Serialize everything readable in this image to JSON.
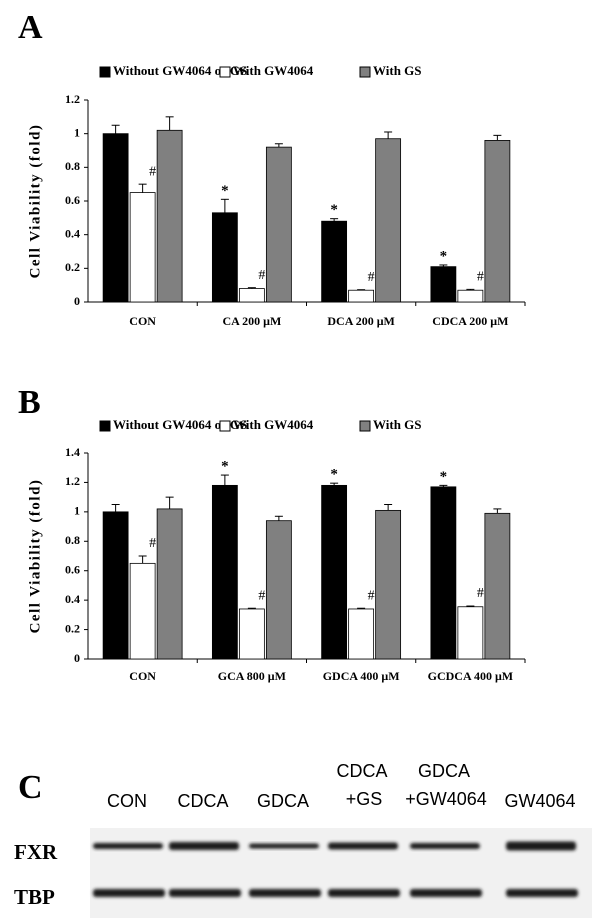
{
  "chart_data": [
    {
      "type": "bar",
      "panel": "A",
      "ylabel": "Cell Viability (fold)",
      "categories": [
        "CON",
        "CA 200 μM",
        "DCA 200 μM",
        "CDCA 200 μM"
      ],
      "ylim": [
        0,
        1.2
      ],
      "yticks": [
        0,
        0.2,
        0.4,
        0.6,
        0.8,
        1,
        1.2
      ],
      "series": [
        {
          "name": "Without GW4064 or GS",
          "color": "#000000",
          "values": [
            1.0,
            0.53,
            0.48,
            0.21
          ],
          "errors": [
            0.05,
            0.08,
            0.015,
            0.01
          ],
          "annotations": [
            null,
            "*",
            "*",
            "*"
          ]
        },
        {
          "name": "With GW4064",
          "color": "#ffffff",
          "values": [
            0.65,
            0.08,
            0.07,
            0.07
          ],
          "errors": [
            0.05,
            0.005,
            0.003,
            0.005
          ],
          "annotations": [
            "#",
            "#",
            "#",
            "#"
          ]
        },
        {
          "name": "With GS",
          "color": "#808080",
          "values": [
            1.02,
            0.92,
            0.97,
            0.96
          ],
          "errors": [
            0.08,
            0.02,
            0.04,
            0.03
          ],
          "annotations": [
            null,
            null,
            null,
            null
          ]
        }
      ]
    },
    {
      "type": "bar",
      "panel": "B",
      "ylabel": "Cell Viability (fold)",
      "categories": [
        "CON",
        "GCA 800 μM",
        "GDCA 400 μM",
        "GCDCA 400 μM"
      ],
      "ylim": [
        0,
        1.4
      ],
      "yticks": [
        0,
        0.2,
        0.4,
        0.6,
        0.8,
        1,
        1.2,
        1.4
      ],
      "series": [
        {
          "name": "Without GW4064 or GS",
          "color": "#000000",
          "values": [
            1.0,
            1.18,
            1.18,
            1.17
          ],
          "errors": [
            0.05,
            0.07,
            0.015,
            0.01
          ],
          "annotations": [
            null,
            "*",
            "*",
            "*"
          ]
        },
        {
          "name": "With GW4064",
          "color": "#ffffff",
          "values": [
            0.65,
            0.34,
            0.34,
            0.355
          ],
          "errors": [
            0.05,
            0.005,
            0.005,
            0.005
          ],
          "annotations": [
            "#",
            "#",
            "#",
            "#"
          ]
        },
        {
          "name": "With GS",
          "color": "#808080",
          "values": [
            1.02,
            0.94,
            1.01,
            0.99
          ],
          "errors": [
            0.08,
            0.03,
            0.04,
            0.03
          ],
          "annotations": [
            null,
            null,
            null,
            null
          ]
        }
      ]
    }
  ],
  "blot": {
    "panel": "C",
    "lanes": [
      [
        "CON"
      ],
      [
        "CDCA"
      ],
      [
        "GDCA"
      ],
      [
        "CDCA",
        "+GS"
      ],
      [
        "GDCA",
        "+GW4064"
      ],
      [
        "GW4064"
      ]
    ],
    "rows": [
      "FXR",
      "TBP"
    ]
  }
}
